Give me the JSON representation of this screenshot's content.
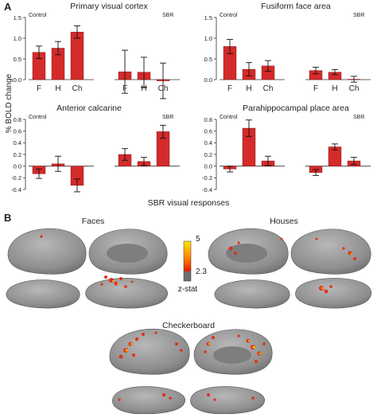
{
  "panel_a_label": "A",
  "panel_b_label": "B",
  "y_axis_label": "% BOLD change",
  "bottom_label": "SBR visual responses",
  "brain": {
    "faces_title": "Faces",
    "houses_title": "Houses",
    "checkerboard_title": "Checkerboard",
    "colorbar_max": "5",
    "colorbar_min": "2.3",
    "colorbar_label": "z-stat",
    "colorbar_colors": [
      "#ffe600",
      "#ff7a00",
      "#e01c00",
      "#6e6e6e"
    ]
  },
  "bar_color": "#d42a2a",
  "chart_data": [
    {
      "type": "bar",
      "title": "Primary visual cortex",
      "ylim": [
        0,
        1.5
      ],
      "yticks": [
        "0.0",
        "0.5",
        "1.0",
        "1.5"
      ],
      "groups": [
        {
          "label": "Control",
          "categories": [
            "F",
            "H",
            "Ch"
          ],
          "values": [
            0.66,
            0.76,
            1.15
          ],
          "errors": [
            0.15,
            0.16,
            0.15
          ]
        },
        {
          "label": "SBR",
          "categories": [
            "F",
            "H",
            "Ch"
          ],
          "values": [
            0.19,
            0.18,
            -0.03
          ],
          "errors": [
            0.52,
            0.36,
            0.43
          ]
        }
      ]
    },
    {
      "type": "bar",
      "title": "Fusiform face area",
      "ylim": [
        0,
        1.5
      ],
      "yticks": [
        "0.0",
        "0.5",
        "1.0",
        "1.5"
      ],
      "groups": [
        {
          "label": "Control",
          "categories": [
            "F",
            "H",
            "Ch"
          ],
          "values": [
            0.8,
            0.25,
            0.33
          ],
          "errors": [
            0.17,
            0.16,
            0.13
          ]
        },
        {
          "label": "SBR",
          "categories": [
            "F",
            "H",
            "Ch"
          ],
          "values": [
            0.22,
            0.18,
            0.01
          ],
          "errors": [
            0.08,
            0.06,
            0.07
          ]
        }
      ]
    },
    {
      "type": "bar",
      "title": "Anterior calcarine",
      "ylim": [
        -0.4,
        0.8
      ],
      "yticks": [
        "-0.4",
        "-0.2",
        "0.0",
        "0.2",
        "0.4",
        "0.6",
        "0.8"
      ],
      "groups": [
        {
          "label": "Control",
          "categories": [
            "F",
            "H",
            "Ch"
          ],
          "values": [
            -0.13,
            0.04,
            -0.33
          ],
          "errors": [
            0.08,
            0.13,
            0.11
          ]
        },
        {
          "label": "SBR",
          "categories": [
            "F",
            "H",
            "Ch"
          ],
          "values": [
            0.2,
            0.08,
            0.59
          ],
          "errors": [
            0.1,
            0.07,
            0.11
          ]
        }
      ]
    },
    {
      "type": "bar",
      "title": "Parahippocampal place area",
      "ylim": [
        -0.4,
        0.8
      ],
      "yticks": [
        "-0.4",
        "-0.2",
        "0.0",
        "0.2",
        "0.4",
        "0.6",
        "0.8"
      ],
      "groups": [
        {
          "label": "Control",
          "categories": [
            "F",
            "H",
            "Ch"
          ],
          "values": [
            -0.05,
            0.65,
            0.09
          ],
          "errors": [
            0.05,
            0.14,
            0.08
          ]
        },
        {
          "label": "SBR",
          "categories": [
            "F",
            "H",
            "Ch"
          ],
          "values": [
            -0.11,
            0.33,
            0.09
          ],
          "errors": [
            0.05,
            0.05,
            0.06
          ]
        }
      ]
    }
  ]
}
